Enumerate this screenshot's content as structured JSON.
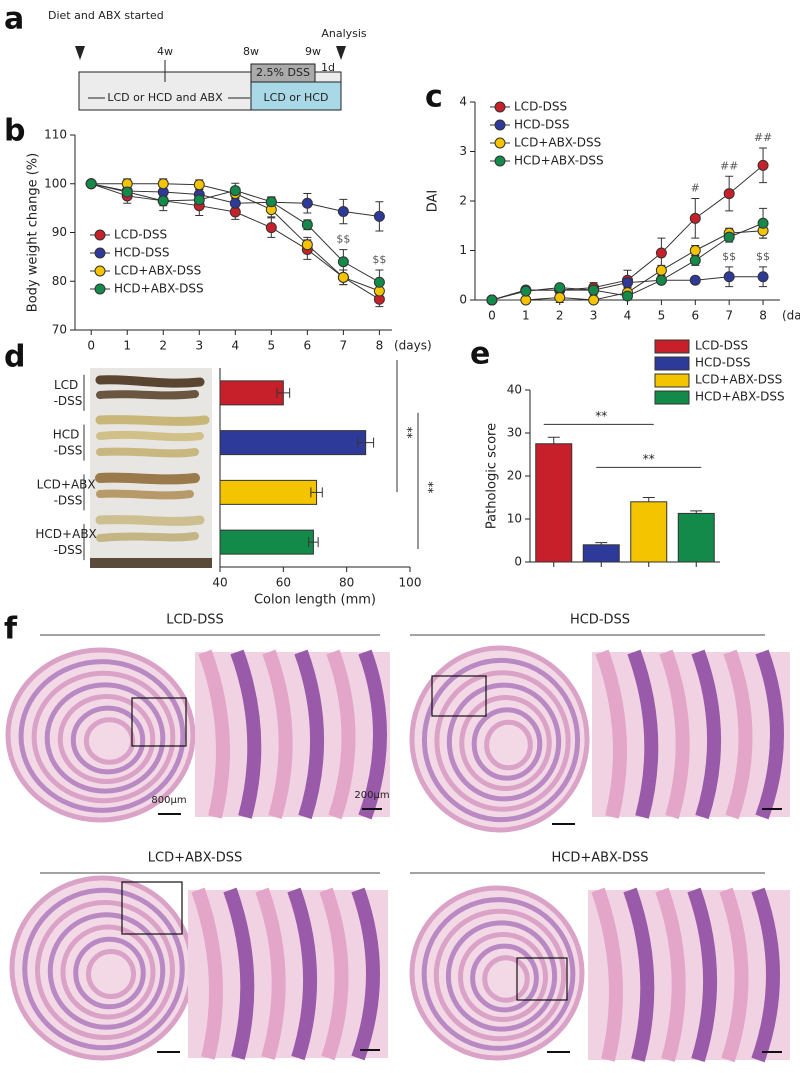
{
  "panel_labels": [
    "a",
    "b",
    "c",
    "d",
    "e",
    "f"
  ],
  "timeline": {
    "start": "Diet and ABX started",
    "end": "Analysis",
    "marks": [
      "4w",
      "8w",
      "9w",
      "1d"
    ],
    "dss": "2.5% DSS",
    "phase1": "LCD or HCD and ABX",
    "phase2": "LCD or HCD"
  },
  "chart_data": [
    {
      "type": "line",
      "ylabel": "Body weight change (%)",
      "xlabel": "(days)",
      "x": [
        0,
        1,
        2,
        3,
        4,
        5,
        6,
        7,
        8
      ],
      "xlim": [
        -0.45,
        8.35
      ],
      "xticks": [
        0,
        1,
        2,
        3,
        4,
        5,
        6,
        7,
        8
      ],
      "ylim": [
        70,
        110
      ],
      "yticks": [
        70,
        80,
        90,
        100,
        110
      ],
      "legend": "lower left",
      "series": [
        {
          "name": "LCD-DSS",
          "color": "#c8202a",
          "values": [
            100,
            97.5,
            96.5,
            95.5,
            94.2,
            91,
            86.5,
            80.8,
            76.3
          ],
          "errors": [
            0,
            1.5,
            2,
            2,
            1.5,
            2,
            2,
            1.5,
            1.5
          ]
        },
        {
          "name": "HCD-DSS",
          "color": "#2e3a9a",
          "values": [
            100,
            98.5,
            98.3,
            97.8,
            96,
            96.2,
            96,
            94.3,
            93.3
          ],
          "errors": [
            0,
            1,
            1,
            1,
            1,
            1,
            2,
            2.5,
            3
          ]
        },
        {
          "name": "LCD+ABX-DSS",
          "color": "#f5c400",
          "values": [
            100,
            100,
            100,
            99.8,
            98,
            94.7,
            87.5,
            80.8,
            78
          ],
          "errors": [
            0,
            1,
            1,
            1,
            1,
            1.5,
            1.5,
            1.5,
            1.5
          ]
        },
        {
          "name": "HCD+ABX-DSS",
          "color": "#138a4a",
          "values": [
            100,
            98.3,
            96.5,
            96.7,
            98.6,
            96.3,
            91.6,
            84,
            79.8
          ],
          "errors": [
            0,
            1,
            1,
            1.5,
            1.5,
            1,
            1,
            2.5,
            2.5
          ]
        }
      ],
      "annotations": [
        {
          "text": "$$",
          "x": 7,
          "series": 3
        },
        {
          "text": "$$",
          "x": 8,
          "series": 3
        }
      ]
    },
    {
      "type": "line",
      "ylabel": "DAI",
      "xlabel": "(days)",
      "x": [
        0,
        1,
        2,
        3,
        4,
        5,
        6,
        7,
        8
      ],
      "xlim": [
        -0.5,
        8.5
      ],
      "xticks": [
        0,
        1,
        2,
        3,
        4,
        5,
        6,
        7,
        8
      ],
      "ylim": [
        0,
        4
      ],
      "yticks": [
        0,
        1,
        2,
        3,
        4
      ],
      "legend": "upper left",
      "series": [
        {
          "name": "LCD-DSS",
          "color": "#c8202a",
          "values": [
            0,
            0.2,
            0.2,
            0.25,
            0.4,
            0.95,
            1.65,
            2.15,
            2.72
          ],
          "errors": [
            0,
            0.05,
            0.1,
            0.1,
            0.2,
            0.3,
            0.4,
            0.35,
            0.35
          ]
        },
        {
          "name": "HCD-DSS",
          "color": "#2e3a9a",
          "values": [
            0,
            0.2,
            0.2,
            0.2,
            0.35,
            0.4,
            0.4,
            0.47,
            0.47
          ],
          "errors": [
            0,
            0.05,
            0.05,
            0.05,
            0.1,
            0.05,
            0.05,
            0.2,
            0.2
          ]
        },
        {
          "name": "LCD+ABX-DSS",
          "color": "#f5c400",
          "values": [
            0,
            0,
            0.05,
            0,
            0.15,
            0.6,
            1.0,
            1.35,
            1.4
          ],
          "errors": [
            0,
            0.05,
            0.1,
            0.05,
            0.1,
            0.1,
            0.1,
            0.1,
            0.15
          ]
        },
        {
          "name": "HCD+ABX-DSS",
          "color": "#138a4a",
          "values": [
            0,
            0.18,
            0.25,
            0.2,
            0.08,
            0.4,
            0.8,
            1.27,
            1.55
          ],
          "errors": [
            0,
            0.05,
            0.05,
            0.1,
            0.05,
            0.05,
            0.1,
            0.1,
            0.3
          ]
        }
      ],
      "annotations": [
        {
          "text": "#",
          "x": 6,
          "series": 0
        },
        {
          "text": "##",
          "x": 7,
          "series": 0
        },
        {
          "text": "##",
          "x": 8,
          "series": 0
        },
        {
          "text": "$$",
          "x": 7,
          "series": 1
        },
        {
          "text": "$$",
          "x": 8,
          "series": 1
        }
      ]
    },
    {
      "type": "hbar",
      "categories": [
        "LCD -DSS",
        "HCD -DSS",
        "LCD+ABX -DSS",
        "HCD+ABX -DSS"
      ],
      "values": [
        60,
        86,
        70.5,
        69.5
      ],
      "errors": [
        2,
        2.5,
        1.8,
        1.5
      ],
      "colors": [
        "#c8202a",
        "#2e3a9a",
        "#f5c400",
        "#138a4a"
      ],
      "xlabel": "Colon length (mm)",
      "xlim": [
        40,
        100
      ],
      "xticks": [
        40,
        60,
        80,
        100
      ],
      "annotations": [
        "**",
        "**"
      ]
    },
    {
      "type": "bar",
      "categories": [
        "LCD-DSS",
        "HCD-DSS",
        "LCD+ABX-DSS",
        "HCD+ABX-DSS"
      ],
      "values": [
        27.5,
        4,
        14,
        11.3
      ],
      "errors": [
        1.5,
        0.5,
        1,
        0.6
      ],
      "colors": [
        "#c8202a",
        "#2e3a9a",
        "#f5c400",
        "#138a4a"
      ],
      "ylabel": "Pathologic score",
      "ylim": [
        0,
        40
      ],
      "yticks": [
        0,
        10,
        20,
        30,
        40
      ],
      "legend": "upper right",
      "annotations": [
        "**",
        "**"
      ]
    }
  ],
  "histology": {
    "groups": [
      "LCD-DSS",
      "HCD-DSS",
      "LCD+ABX-DSS",
      "HCD+ABX-DSS"
    ],
    "scale_bars": [
      "800μm",
      "200μm"
    ]
  }
}
